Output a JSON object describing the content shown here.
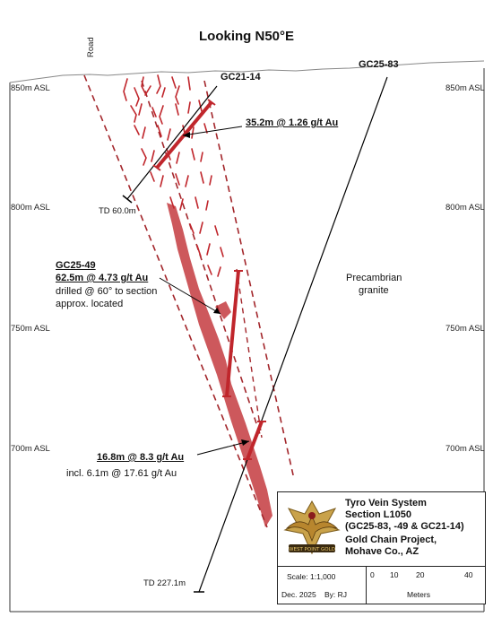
{
  "title": "Looking N50°E",
  "elevations": {
    "left": [
      "850m ASL",
      "800m ASL",
      "750m ASL",
      "700m ASL"
    ],
    "right": [
      "850m ASL",
      "800m ASL",
      "750m ASL",
      "700m ASL"
    ]
  },
  "road_label": "Road",
  "holes": {
    "gc21_14": {
      "name": "GC21-14",
      "td": "TD 60.0m"
    },
    "gc25_83": {
      "name": "GC25-83",
      "td": "TD 227.1m"
    },
    "gc25_49": {
      "name": "GC25-49"
    }
  },
  "intercepts": {
    "gc21_14": "35.2m @ 1.26 g/t Au",
    "gc25_49": "62.5m @ 4.73 g/t Au",
    "gc25_49_note_1": "drilled @ 60° to section",
    "gc25_49_note_2": "approx. located",
    "gc25_83": "16.8m @ 8.3 g/t Au",
    "gc25_83_incl": "incl. 6.1m @ 17.61 g/t Au"
  },
  "rock_label": [
    "Precambrian",
    "granite"
  ],
  "legend": {
    "lines": [
      "Tyro Vein System",
      "Section L1050",
      "(GC25-83, -49 & GC21-14)",
      "Gold Chain Project,",
      "Mohave Co., AZ"
    ],
    "logo_text": "WEST POINT GOLD",
    "scale": "Scale: 1:1,000",
    "date": "Dec. 2025",
    "by": "By: RJ",
    "scale_ticks": [
      "0",
      "10",
      "20",
      "40"
    ],
    "scale_unit": "Meters"
  },
  "colors": {
    "vein": "#c0262c",
    "zone_fill": "#c8464a",
    "hole_line": "#000000"
  }
}
